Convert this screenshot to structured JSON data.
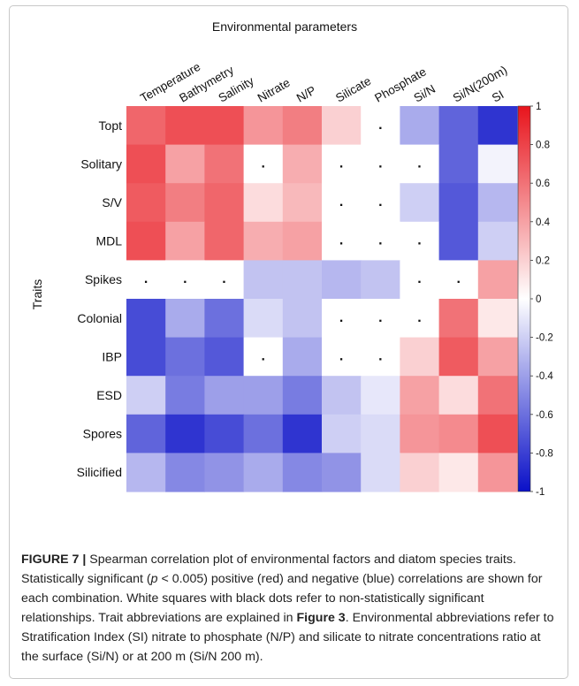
{
  "chart_data": {
    "type": "heatmap",
    "title": "Environmental parameters",
    "ylabel": "Traits",
    "columns": [
      "Temperature",
      "Bathymetry",
      "Salinity",
      "Nitrate",
      "N/P",
      "Silicate",
      "Phosphate",
      "Si/N",
      "Si/N(200m)",
      "SI"
    ],
    "rows": [
      "Topt",
      "Solitary",
      "S/V",
      "MDL",
      "Spikes",
      "Colonial",
      "IBP",
      "ESD",
      "Spores",
      "Silicified"
    ],
    "values": [
      [
        0.65,
        0.75,
        0.75,
        0.45,
        0.55,
        0.2,
        null,
        -0.35,
        -0.65,
        -0.85
      ],
      [
        0.75,
        0.4,
        0.6,
        null,
        0.35,
        null,
        null,
        null,
        -0.65,
        -0.05
      ],
      [
        0.7,
        0.55,
        0.65,
        0.15,
        0.3,
        null,
        null,
        -0.2,
        -0.7,
        -0.3
      ],
      [
        0.75,
        0.4,
        0.65,
        0.35,
        0.4,
        null,
        null,
        null,
        -0.7,
        -0.2
      ],
      [
        null,
        null,
        null,
        -0.25,
        -0.25,
        -0.3,
        -0.25,
        null,
        null,
        0.4
      ],
      [
        -0.75,
        -0.35,
        -0.6,
        -0.15,
        -0.25,
        null,
        null,
        null,
        0.6,
        0.1
      ],
      [
        -0.75,
        -0.6,
        -0.7,
        null,
        -0.35,
        null,
        null,
        0.2,
        0.7,
        0.4
      ],
      [
        -0.2,
        -0.55,
        -0.4,
        -0.4,
        -0.55,
        -0.25,
        -0.1,
        0.4,
        0.15,
        0.6
      ],
      [
        -0.65,
        -0.85,
        -0.75,
        -0.6,
        -0.85,
        -0.2,
        -0.15,
        0.45,
        0.5,
        0.75
      ],
      [
        -0.3,
        -0.5,
        -0.45,
        -0.35,
        -0.5,
        -0.45,
        -0.15,
        0.2,
        0.1,
        0.45
      ]
    ],
    "colorbar": {
      "min": -1,
      "max": 1,
      "ticks": [
        "1",
        "0.8",
        "0.6",
        "0.4",
        "0.2",
        "0",
        "-0.2",
        "-0.4",
        "-0.6",
        "-0.8",
        "-1"
      ],
      "colors": {
        "negative": "#0a10c8",
        "zero": "#ffffff",
        "positive": "#e8141c"
      }
    },
    "nonsignificant_marker": "."
  },
  "caption": {
    "label": "FIGURE 7 |",
    "text_1": " Spearman correlation plot of environmental factors and diatom species traits. Statistically significant (",
    "p_var": "p",
    "text_2": " < 0.005) positive (red) and negative (blue) correlations are shown for each combination. White squares with black dots refer to non-statistically significant relationships. Trait abbreviations are explained in ",
    "ref": "Figure 3",
    "text_3": ". Environmental abbreviations refer to Stratification Index (SI) nitrate to phosphate (N/P) and silicate to nitrate concentrations ratio at the surface (Si/N) or at 200 m (Si/N 200 m)."
  }
}
